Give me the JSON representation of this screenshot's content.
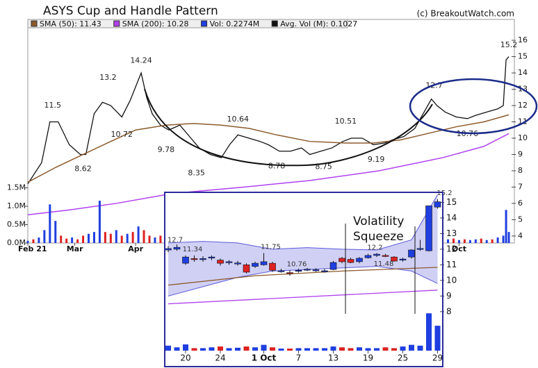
{
  "chart_data": [
    {
      "type": "line",
      "title": "ASYS Cup and Handle Pattern",
      "source": "(c) BreakoutWatch.com",
      "xlim": [
        0,
        176
      ],
      "xticks": [
        {
          "value": 0,
          "label": "Feb 21"
        },
        {
          "value": 17,
          "label": "Mar"
        },
        {
          "value": 39,
          "label": "Apr"
        },
        {
          "value": 156,
          "label": "Oct"
        }
      ],
      "ylim": [
        3.57,
        16.77
      ],
      "yticks": [
        4,
        5,
        6,
        7,
        8,
        9,
        10,
        11,
        12,
        13,
        14,
        15,
        16
      ],
      "y2lim": [
        0,
        5.85
      ],
      "y2ticks": [
        {
          "value": 0,
          "label": "0.0M"
        },
        {
          "value": 0.5,
          "label": "0.5M"
        },
        {
          "value": 1,
          "label": "1.0M"
        },
        {
          "value": 1.5,
          "label": "1.5M"
        }
      ],
      "series": [
        {
          "color": "#111111",
          "x": [
            0,
            5,
            8,
            11,
            15,
            19,
            21,
            24,
            27,
            30,
            34,
            37,
            41,
            43,
            45,
            48,
            51,
            55,
            59,
            62,
            66,
            70,
            73,
            76,
            80,
            84,
            87,
            91,
            95,
            99,
            102,
            106,
            110,
            114,
            117,
            121,
            125,
            129,
            132,
            136,
            140,
            143,
            146,
            148,
            151,
            155,
            159,
            162,
            166,
            170,
            172,
            173,
            174
          ],
          "values": [
            7.2,
            8.5,
            11.0,
            11.0,
            9.6,
            9.0,
            9.0,
            11.5,
            12.2,
            12.0,
            11.3,
            12.3,
            14.0,
            12.5,
            11.5,
            10.8,
            10.5,
            10.8,
            10.0,
            9.4,
            9.0,
            8.8,
            9.6,
            10.2,
            10.0,
            9.8,
            9.6,
            9.2,
            9.2,
            9.4,
            9.0,
            9.2,
            9.4,
            9.8,
            10.0,
            10.0,
            9.6,
            9.7,
            9.9,
            10.1,
            10.6,
            11.5,
            12.4,
            12.0,
            11.6,
            11.3,
            11.2,
            11.4,
            11.6,
            11.8,
            12.0,
            14.8,
            15.0
          ]
        },
        {
          "name": "SMA (50): 11.43",
          "color": "#8b5a2b",
          "x": [
            0,
            10,
            20,
            30,
            39,
            50,
            60,
            70,
            80,
            90,
            102,
            115,
            125,
            135,
            145,
            155,
            165,
            174
          ],
          "values": [
            7.3,
            8.2,
            9.0,
            9.8,
            10.5,
            10.8,
            10.9,
            10.8,
            10.6,
            10.2,
            9.8,
            9.7,
            9.7,
            9.9,
            10.3,
            10.7,
            11.0,
            11.43
          ]
        },
        {
          "name": "SMA (200): 10.28",
          "color": "#b040f0",
          "x": [
            0,
            15,
            32,
            52,
            78,
            102,
            127,
            150,
            165,
            174
          ],
          "values": [
            5.3,
            5.6,
            6.0,
            6.6,
            7.0,
            7.4,
            8.0,
            8.8,
            9.5,
            10.28
          ]
        },
        {
          "name": "Vol: 0.2274M",
          "color": "#1f3fe0",
          "type": "bar",
          "axis": "y2",
          "x": [
            0,
            2,
            4,
            6,
            8,
            10,
            12,
            14,
            16,
            18,
            20,
            22,
            24,
            26,
            28,
            30,
            32,
            34,
            36,
            38,
            40,
            42,
            44,
            46,
            48,
            148,
            150,
            152,
            154,
            156,
            158,
            160,
            162,
            164,
            166,
            168,
            170,
            172,
            173,
            174
          ],
          "values": [
            0.06,
            0.1,
            0.15,
            0.35,
            1.05,
            0.6,
            0.2,
            0.12,
            0.15,
            0.1,
            0.2,
            0.25,
            0.3,
            1.15,
            0.3,
            0.25,
            0.35,
            0.2,
            0.25,
            0.3,
            0.45,
            0.35,
            0.2,
            0.15,
            0.2,
            0.1,
            0.08,
            0.1,
            0.12,
            0.08,
            0.1,
            0.08,
            0.1,
            0.12,
            0.08,
            0.1,
            0.15,
            0.2,
            0.9,
            0.3
          ],
          "colors": [
            "#1f3fe0",
            "#dd2222",
            "#1f3fe0",
            "#1f3fe0",
            "#1f3fe0",
            "#1f3fe0",
            "#dd2222",
            "#dd2222",
            "#1f3fe0",
            "#dd2222",
            "#dd2222",
            "#1f3fe0",
            "#1f3fe0",
            "#1f3fe0",
            "#dd2222",
            "#dd2222",
            "#1f3fe0",
            "#dd2222",
            "#1f3fe0",
            "#dd2222",
            "#1f3fe0",
            "#dd2222",
            "#dd2222",
            "#1f3fe0",
            "#dd2222",
            "#1f3fe0",
            "#dd2222",
            "#1f3fe0",
            "#dd2222",
            "#1f3fe0",
            "#dd2222",
            "#1f3fe0",
            "#1f3fe0",
            "#dd2222",
            "#1f3fe0",
            "#dd2222",
            "#1f3fe0",
            "#1f3fe0",
            "#1f3fe0",
            "#1f3fe0"
          ]
        }
      ],
      "legend_extra": {
        "name": "Avg. Vol (M): 0.1027",
        "color": "#111111"
      },
      "price_labels": [
        {
          "x": 9,
          "value": 11.5
        },
        {
          "x": 29,
          "value": 13.2
        },
        {
          "x": 41,
          "value": 14.24
        },
        {
          "x": 34,
          "value": 10.72
        },
        {
          "x": 20,
          "value": 8.62
        },
        {
          "x": 50,
          "value": 9.78
        },
        {
          "x": 61,
          "value": 8.35
        },
        {
          "x": 76,
          "value": 10.64
        },
        {
          "x": 90,
          "value": 8.78
        },
        {
          "x": 107,
          "value": 8.75
        },
        {
          "x": 115,
          "value": 10.51
        },
        {
          "x": 126,
          "value": 9.19
        },
        {
          "x": 147,
          "value": 12.7
        },
        {
          "x": 159,
          "value": 10.76
        },
        {
          "x": 174,
          "value": 15.2
        }
      ]
    },
    {
      "type": "candlestick",
      "xlim": [
        -0.4,
        31.6
      ],
      "xticks": [
        {
          "value": 2,
          "label": "20"
        },
        {
          "value": 6,
          "label": "24"
        },
        {
          "value": 11,
          "label": "1 Oct"
        },
        {
          "value": 15,
          "label": "7"
        },
        {
          "value": 19,
          "label": "13"
        },
        {
          "value": 23,
          "label": "19"
        },
        {
          "value": 27,
          "label": "25"
        },
        {
          "value": 31,
          "label": "29"
        }
      ],
      "ylim": [
        5.5,
        15.6
      ],
      "yticks": [
        8,
        9,
        10,
        11,
        12,
        13,
        14,
        15
      ],
      "y2lim": [
        0,
        3.8
      ],
      "up_color": "#1f3fe0",
      "down_color": "#dd2222",
      "open": [
        11.95,
        12.0,
        11.1,
        11.4,
        11.35,
        11.45,
        11.3,
        11.15,
        11.1,
        11.0,
        10.9,
        11.0,
        11.1,
        10.6,
        10.5,
        10.6,
        10.7,
        10.65,
        10.6,
        10.7,
        11.42,
        11.35,
        11.2,
        11.45,
        11.6,
        11.6,
        11.5,
        11.3,
        11.5,
        12.0,
        11.9,
        14.7
      ],
      "high": [
        12.2,
        12.3,
        11.6,
        11.6,
        11.55,
        11.6,
        11.4,
        11.3,
        11.25,
        11.1,
        11.2,
        11.75,
        11.2,
        10.75,
        10.65,
        10.75,
        10.8,
        10.78,
        10.75,
        11.25,
        11.5,
        11.45,
        11.5,
        11.7,
        11.75,
        11.7,
        11.55,
        11.45,
        12.0,
        12.6,
        14.8,
        15.2
      ],
      "low": [
        11.8,
        11.9,
        11.0,
        11.2,
        11.2,
        11.3,
        10.95,
        11.0,
        10.95,
        10.45,
        10.8,
        10.95,
        10.55,
        10.5,
        10.3,
        10.5,
        10.6,
        10.55,
        10.5,
        10.65,
        11.1,
        11.1,
        11.1,
        11.4,
        11.5,
        11.5,
        11.2,
        11.2,
        11.4,
        11.9,
        11.85,
        14.6
      ],
      "close": [
        12.04,
        12.12,
        11.5,
        11.37,
        11.4,
        11.5,
        11.1,
        11.2,
        11.12,
        10.53,
        11.1,
        11.2,
        10.65,
        10.62,
        10.45,
        10.65,
        10.72,
        10.68,
        10.62,
        11.15,
        11.2,
        11.15,
        11.42,
        11.6,
        11.68,
        11.55,
        11.24,
        11.37,
        11.95,
        12.05,
        14.78,
        15.04
      ],
      "volume": [
        0.12,
        0.08,
        0.15,
        0.06,
        0.06,
        0.08,
        0.1,
        0.06,
        0.07,
        0.1,
        0.08,
        0.14,
        0.08,
        0.05,
        0.05,
        0.06,
        0.06,
        0.06,
        0.06,
        0.1,
        0.08,
        0.06,
        0.08,
        0.06,
        0.06,
        0.08,
        0.06,
        0.1,
        0.14,
        0.12,
        0.9,
        0.6
      ],
      "bands": {
        "color": "#5a5ad8",
        "fill": "#c4c4f2",
        "x": [
          0,
          4,
          8,
          12,
          16,
          20,
          24,
          28,
          31
        ],
        "upper": [
          12.4,
          12.5,
          12.4,
          12.0,
          12.1,
          12.0,
          11.95,
          12.6,
          15.5
        ],
        "lower": [
          9.0,
          9.6,
          10.2,
          10.6,
          10.7,
          10.8,
          10.9,
          10.6,
          9.8
        ]
      },
      "lines": [
        {
          "color": "#8b5a2b",
          "x": [
            0,
            10,
            20,
            31
          ],
          "values": [
            9.7,
            10.3,
            10.6,
            10.84
          ]
        },
        {
          "color": "#b040f0",
          "x": [
            0,
            31
          ],
          "values": [
            8.5,
            9.38
          ]
        }
      ],
      "price_labels": [
        {
          "x": 0,
          "value": 12.7
        },
        {
          "x": 2,
          "value": 11.34
        },
        {
          "x": 11,
          "value": 11.75
        },
        {
          "x": 14,
          "value": 10.76
        },
        {
          "x": 23,
          "value": 12.2
        },
        {
          "x": 24,
          "value": 11.48
        },
        {
          "x": 31,
          "value": 15.2
        }
      ],
      "annotation": "Volatility Squeeze"
    }
  ]
}
